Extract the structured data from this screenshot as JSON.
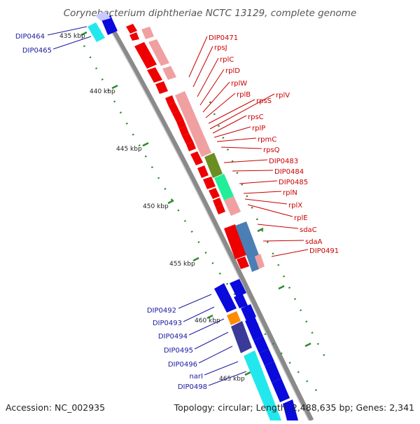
{
  "title": "Corynebacterium diphtheriae NCTC 13129, complete genome",
  "accession": "Accession: NC_002935",
  "topology": "Topology: circular; Length: 2,488,635 bp; Genes: 2,341",
  "ruler_ticks": [
    "435 kbp",
    "440 kbp",
    "445 kbp",
    "450 kbp",
    "455 kbp",
    "460 kbp",
    "465 kbp"
  ],
  "colors": {
    "backbone": "#8a8a8a",
    "ruler_dots": "#2d8a2d",
    "red_gene": "#ee0000",
    "red_block": "#f0a0a0",
    "blue_gene": "#0a0adc",
    "cyan_block": "#22e8ee",
    "label_left": "#1a1aa0",
    "label_right": "#cc0000"
  },
  "left_labels": [
    "DIP0464",
    "DIP0465",
    "DIP0492",
    "DIP0493",
    "DIP0494",
    "DIP0495",
    "DIP0496",
    "narI",
    "DIP0498"
  ],
  "right_labels": [
    "DIP0471",
    "rpsJ",
    "rplC",
    "rplD",
    "rplW",
    "rplB",
    "rpsS",
    "rplV",
    "rpsC",
    "rplP",
    "rpmC",
    "rpsQ",
    "DIP0483",
    "DIP0484",
    "DIP0485",
    "rplN",
    "rplX",
    "rplE",
    "sdaC",
    "sdaA",
    "DIP0491"
  ]
}
